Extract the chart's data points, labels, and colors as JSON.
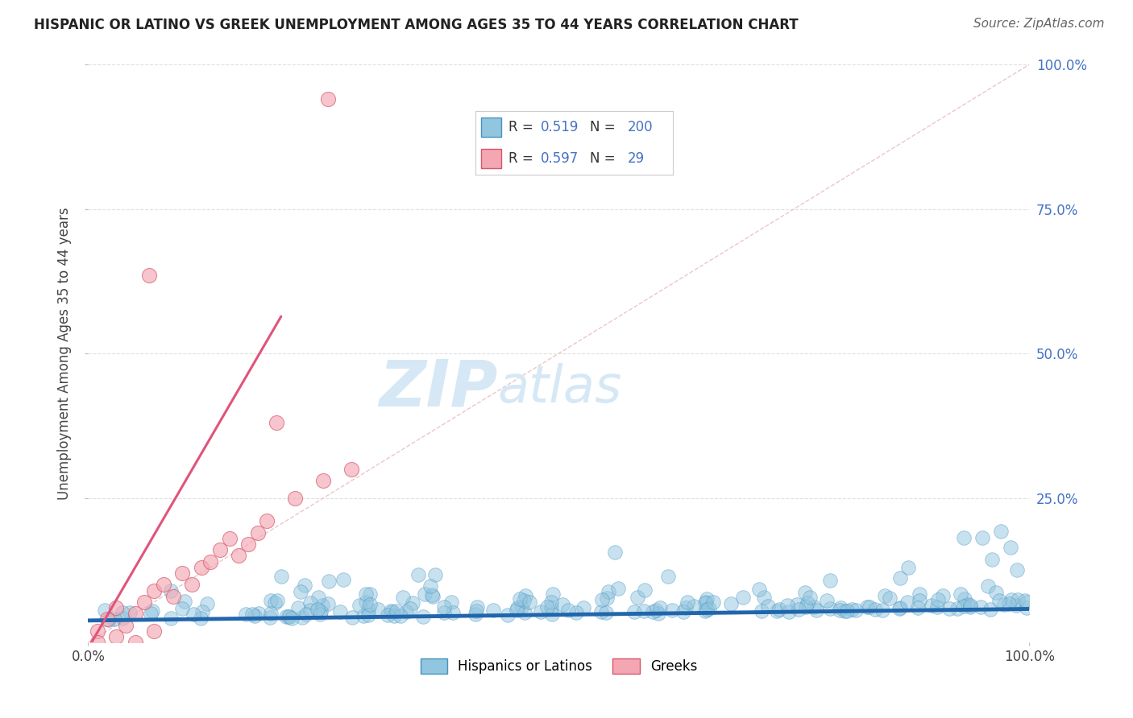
{
  "title": "HISPANIC OR LATINO VS GREEK UNEMPLOYMENT AMONG AGES 35 TO 44 YEARS CORRELATION CHART",
  "source": "Source: ZipAtlas.com",
  "ylabel": "Unemployment Among Ages 35 to 44 years",
  "xlim": [
    0,
    1
  ],
  "ylim": [
    0,
    1
  ],
  "blue_color": "#92c5de",
  "blue_edge": "#4393c3",
  "pink_color": "#f4a7b2",
  "pink_edge": "#d6566a",
  "blue_line_color": "#2166ac",
  "pink_line_color": "#e0547a",
  "diag_line_color": "#e8c0c8",
  "legend_r_blue": "0.519",
  "legend_n_blue": "200",
  "legend_r_pink": "0.597",
  "legend_n_pink": "29",
  "value_color": "#4472c4",
  "watermark_zip": "ZIP",
  "watermark_atlas": "atlas",
  "watermark_color": "#d6e8f5",
  "background_color": "#ffffff",
  "grid_color": "#cccccc",
  "blue_trend_intercept": 0.038,
  "blue_trend_slope": 0.02,
  "pink_trend_intercept": -0.01,
  "pink_trend_slope": 2.8
}
